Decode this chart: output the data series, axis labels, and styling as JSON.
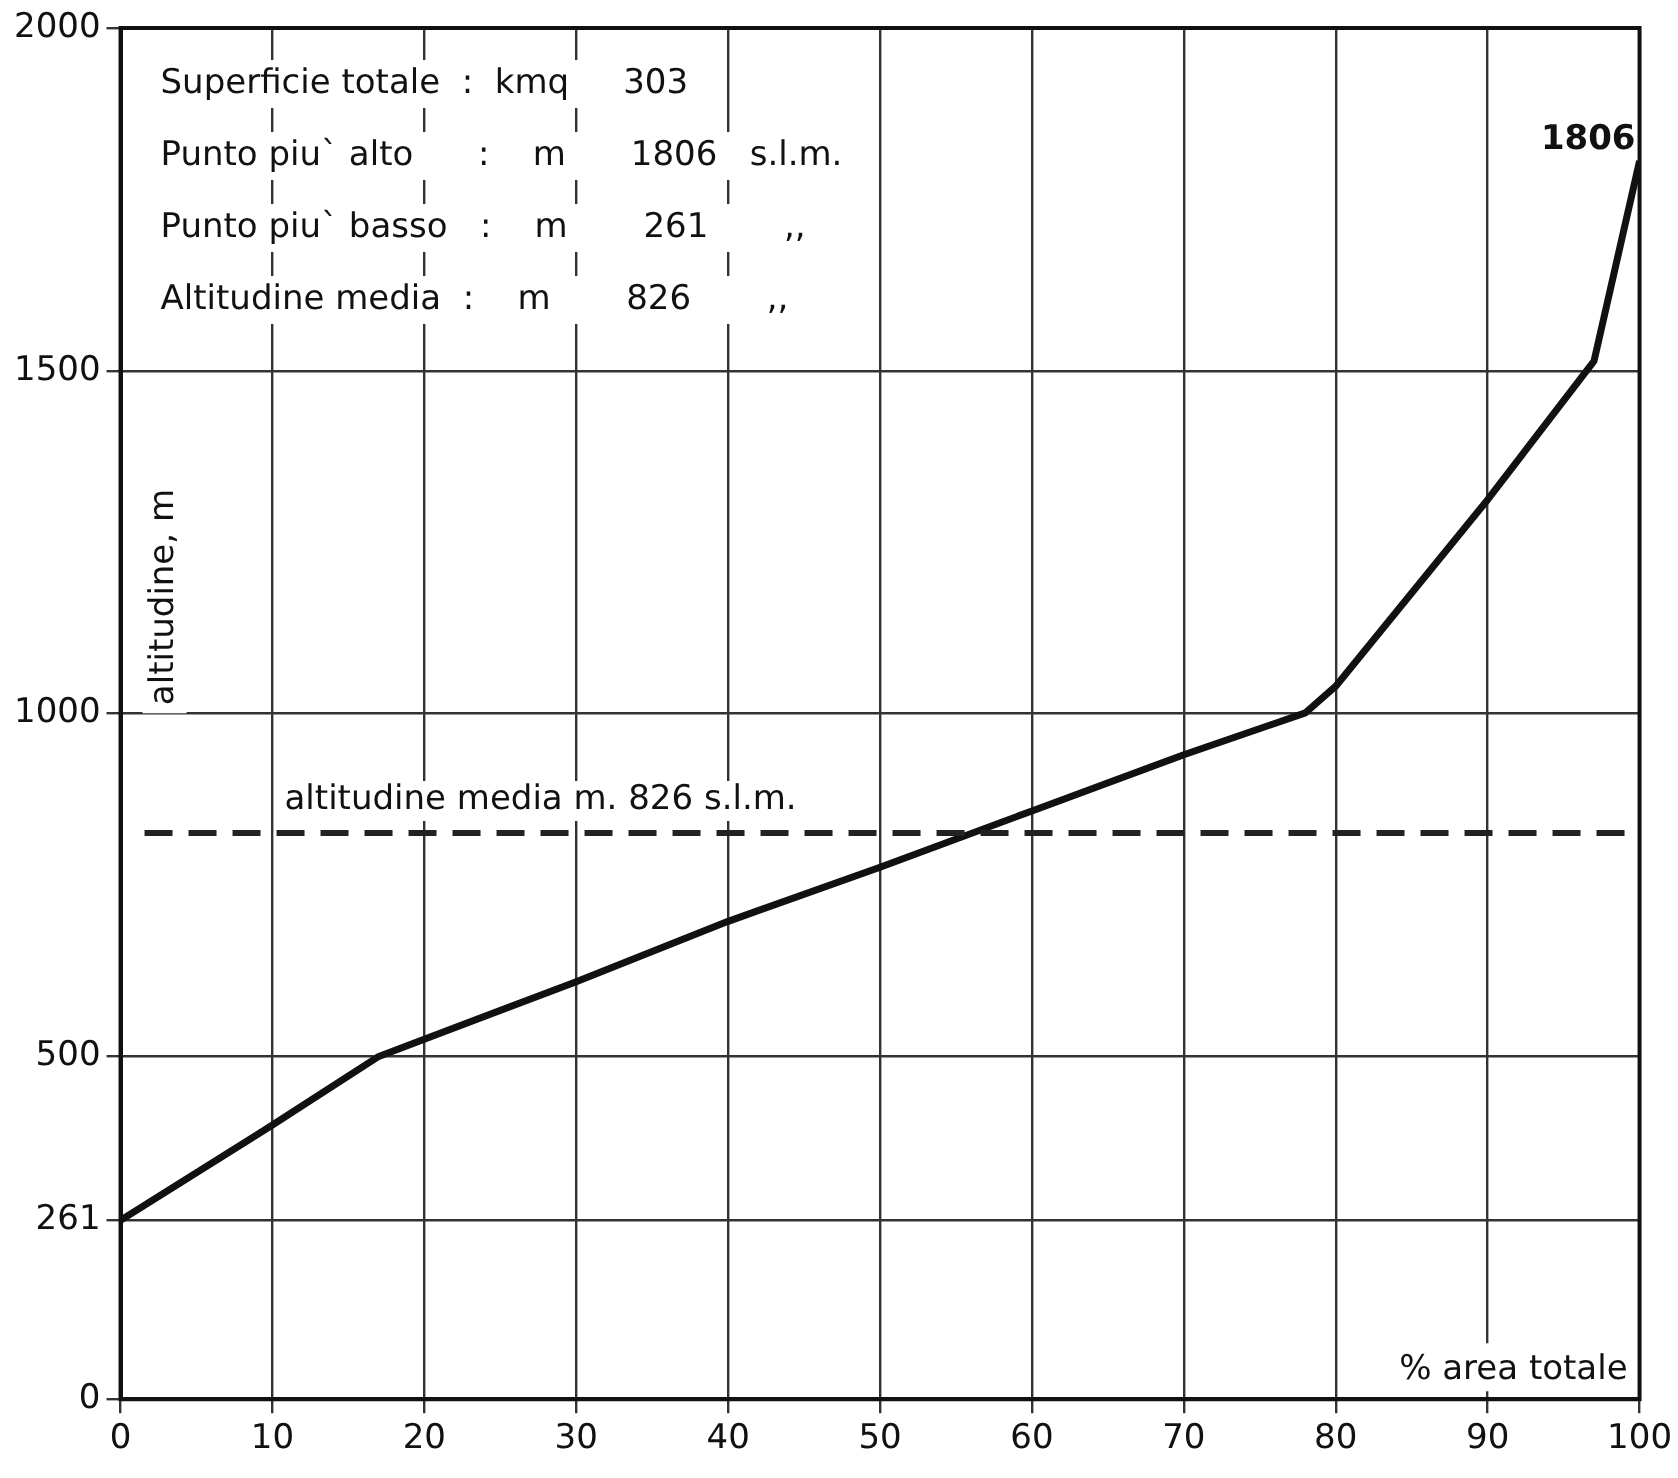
{
  "chart_data": {
    "type": "line",
    "xlabel": "% area totale",
    "ylabel": "altitudine, m",
    "x": [
      0,
      10,
      17,
      30,
      40,
      50,
      60,
      70,
      78,
      80,
      90,
      97,
      100
    ],
    "series": [
      {
        "color": "#111111",
        "values": [
          261,
          400,
          500,
          609,
          697,
          776,
          858,
          940,
          1001,
          1040,
          1312,
          1514,
          1806
        ],
        "value_labels": [
          null,
          null,
          null,
          null,
          null,
          null,
          null,
          null,
          null,
          null,
          null,
          null,
          "1806"
        ]
      }
    ],
    "xlim": [
      0,
      100
    ],
    "xticks": [
      0,
      10,
      20,
      30,
      40,
      50,
      60,
      70,
      80,
      90,
      100
    ],
    "ylim": [
      0,
      2000
    ],
    "yticks": [
      0,
      261,
      500,
      1000,
      1500,
      2000
    ],
    "grid": true,
    "legend": false,
    "marker": "none",
    "line_style": "solid",
    "ref_lines": [
      {
        "axis": "y",
        "value": 826,
        "label": "altitudine media m. 826 s.l.m.",
        "line_style": "dashed",
        "color": "#222222"
      }
    ],
    "annotations": [
      "Superficie totale  :  kmq     303",
      "Punto piu` alto      :    m      1806   s.l.m.",
      "Punto piu` basso   :    m       261       ,,",
      "Altitudine media  :    m       826       ,,"
    ]
  }
}
